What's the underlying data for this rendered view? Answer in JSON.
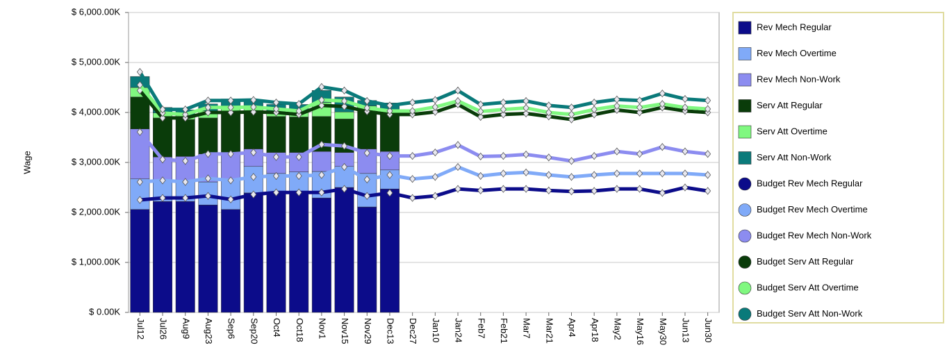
{
  "chart_data": {
    "type": "bar",
    "y_label": "Wage",
    "categories": [
      "Jul12",
      "Jul26",
      "Aug9",
      "Aug23",
      "Sep6",
      "Sep20",
      "Oct4",
      "Oct18",
      "Nov1",
      "Nov15",
      "Nov29",
      "Dec13",
      "Dec27",
      "Jan10",
      "Jan24",
      "Feb7",
      "Feb21",
      "Mar7",
      "Mar21",
      "Apr4",
      "Apr18",
      "May2",
      "May16",
      "May30",
      "Jun13",
      "Jun30"
    ],
    "ylim": [
      0,
      6000
    ],
    "yticks": [
      {
        "value": 0,
        "label": "$ 0.00K"
      },
      {
        "value": 1000,
        "label": "$ 1,000.00K"
      },
      {
        "value": 2000,
        "label": "$ 2,000.00K"
      },
      {
        "value": 3000,
        "label": "$ 3,000.00K"
      },
      {
        "value": 4000,
        "label": "$ 4,000.00K"
      },
      {
        "value": 5000,
        "label": "$ 5,000.00K"
      },
      {
        "value": 6000,
        "label": "$ 6,000.00K"
      }
    ],
    "grid": true,
    "stacked": true,
    "legend": "right",
    "series": [
      {
        "name": "Rev Mech Regular",
        "type": "bar",
        "color": "#0c0c8a",
        "values": [
          2060,
          2220,
          2220,
          2150,
          2060,
          2390,
          2390,
          2390,
          2290,
          2500,
          2110,
          2470,
          null,
          null,
          null,
          null,
          null,
          null,
          null,
          null,
          null,
          null,
          null,
          null,
          null,
          null
        ]
      },
      {
        "name": "Rev Mech Overtime",
        "type": "bar",
        "color": "#80aaf8",
        "values": [
          610,
          390,
          390,
          460,
          610,
          530,
          390,
          420,
          530,
          420,
          670,
          380,
          null,
          null,
          null,
          null,
          null,
          null,
          null,
          null,
          null,
          null,
          null,
          null,
          null,
          null
        ]
      },
      {
        "name": "Rev Mech Non-Work",
        "type": "bar",
        "color": "#8c8cf0",
        "values": [
          1000,
          500,
          510,
          560,
          490,
          350,
          420,
          390,
          400,
          280,
          490,
          370,
          null,
          null,
          null,
          null,
          null,
          null,
          null,
          null,
          null,
          null,
          null,
          null,
          null,
          null
        ]
      },
      {
        "name": "Serv Att Regular",
        "type": "bar",
        "color": "#0a3c0a",
        "values": [
          640,
          780,
          740,
          720,
          870,
          720,
          720,
          710,
          700,
          670,
          760,
          760,
          null,
          null,
          null,
          null,
          null,
          null,
          null,
          null,
          null,
          null,
          null,
          null,
          null,
          null
        ]
      },
      {
        "name": "Serv Att Overtime",
        "type": "bar",
        "color": "#80f880",
        "values": [
          190,
          100,
          80,
          140,
          100,
          110,
          100,
          110,
          280,
          140,
          100,
          70,
          null,
          null,
          null,
          null,
          null,
          null,
          null,
          null,
          null,
          null,
          null,
          null,
          null,
          null
        ]
      },
      {
        "name": "Serv Att Non-Work",
        "type": "bar",
        "color": "#0a7a7a",
        "values": [
          220,
          110,
          110,
          140,
          140,
          140,
          140,
          140,
          240,
          300,
          110,
          140,
          null,
          null,
          null,
          null,
          null,
          null,
          null,
          null,
          null,
          null,
          null,
          null,
          null,
          null
        ]
      },
      {
        "name": "Budget Rev Mech Regular",
        "type": "line",
        "color": "#0c0c8a",
        "values": [
          2250,
          2290,
          2290,
          2330,
          2260,
          2360,
          2400,
          2400,
          2400,
          2470,
          2330,
          2390,
          2290,
          2330,
          2470,
          2440,
          2470,
          2470,
          2440,
          2420,
          2430,
          2470,
          2470,
          2390,
          2500,
          2430
        ]
      },
      {
        "name": "Budget Rev Mech Overtime",
        "type": "line",
        "color": "#80aaf8",
        "values": [
          360,
          350,
          320,
          350,
          380,
          350,
          330,
          330,
          350,
          440,
          330,
          360,
          380,
          380,
          440,
          290,
          310,
          330,
          310,
          290,
          320,
          310,
          310,
          390,
          280,
          320
        ]
      },
      {
        "name": "Budget Rev Mech Non-Work",
        "type": "line",
        "color": "#8c8cf0",
        "values": [
          1000,
          420,
          420,
          490,
          530,
          490,
          380,
          380,
          610,
          420,
          530,
          380,
          460,
          490,
          440,
          390,
          350,
          360,
          350,
          320,
          380,
          440,
          390,
          530,
          440,
          420
        ]
      },
      {
        "name": "Budget Serv Att Regular",
        "type": "line",
        "color": "#0a3c0a",
        "values": [
          830,
          830,
          860,
          830,
          830,
          810,
          890,
          850,
          780,
          790,
          830,
          830,
          830,
          810,
          810,
          790,
          830,
          820,
          820,
          830,
          830,
          830,
          830,
          790,
          810,
          830
        ]
      },
      {
        "name": "Budget Serv Att Overtime",
        "type": "line",
        "color": "#80f880",
        "values": [
          110,
          100,
          70,
          100,
          100,
          100,
          70,
          70,
          110,
          110,
          70,
          70,
          70,
          100,
          70,
          110,
          100,
          110,
          80,
          100,
          100,
          80,
          100,
          70,
          70,
          70
        ]
      },
      {
        "name": "Budget Serv Att Non-Work",
        "type": "line",
        "color": "#0a7a7a",
        "values": [
          260,
          70,
          100,
          140,
          140,
          140,
          130,
          140,
          260,
          210,
          140,
          110,
          170,
          140,
          210,
          140,
          140,
          140,
          140,
          140,
          140,
          130,
          140,
          210,
          170,
          170
        ]
      }
    ]
  }
}
